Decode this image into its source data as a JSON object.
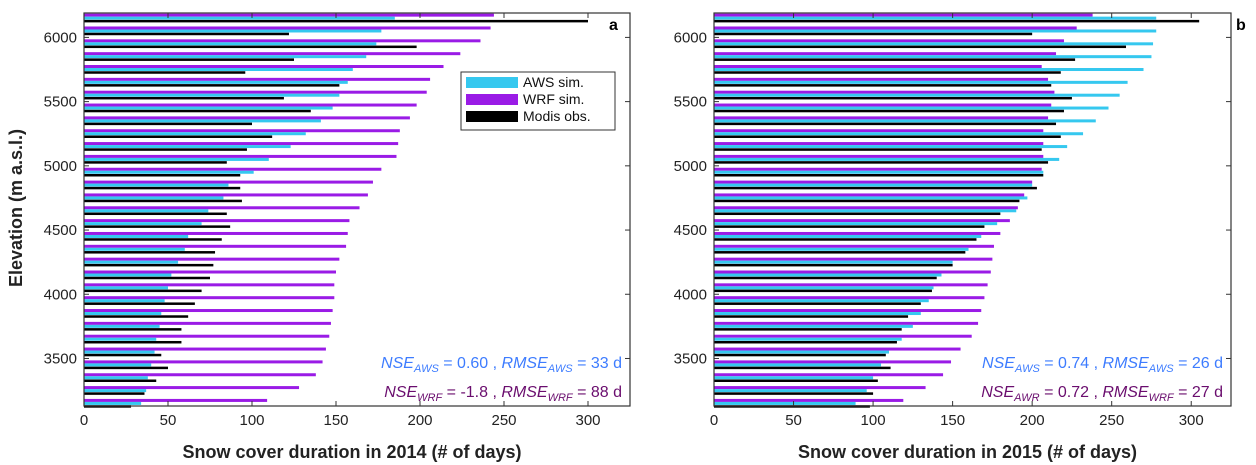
{
  "figure": {
    "ylabel": "Elevation (m a.s.l.)",
    "colors": {
      "aws": "#35c8ef",
      "wrf": "#9a1be6",
      "modis": "#000000",
      "stat_aws": "#3d7cff",
      "stat_wrf": "#6a0d6e"
    }
  },
  "legend": {
    "aws": "AWS sim.",
    "wrf": "WRF sim.",
    "modis": "Modis obs.",
    "placement": "top-right of panel a"
  },
  "chart_data": [
    {
      "type": "bar",
      "orientation": "horizontal",
      "panel": "a",
      "xlabel": "Snow cover duration in 2014 (# of days)",
      "ylabel": "Elevation (m a.s.l.)",
      "xlim": [
        0,
        325
      ],
      "ylim": [
        3130,
        6190
      ],
      "xticks": [
        "0",
        "50",
        "100",
        "150",
        "200",
        "250",
        "300"
      ],
      "yticks": [
        "3500",
        "4000",
        "4500",
        "5000",
        "5500",
        "6000"
      ],
      "y": [
        3150,
        3250,
        3350,
        3450,
        3550,
        3650,
        3750,
        3850,
        3950,
        4050,
        4150,
        4250,
        4350,
        4450,
        4550,
        4650,
        4750,
        4850,
        4950,
        5050,
        5150,
        5250,
        5350,
        5450,
        5550,
        5650,
        5750,
        5850,
        5950,
        6050,
        6150
      ],
      "series": [
        {
          "name": "AWS sim.",
          "values": [
            34,
            37,
            38,
            40,
            42,
            43,
            45,
            46,
            48,
            50,
            52,
            56,
            60,
            62,
            70,
            74,
            83,
            86,
            101,
            110,
            123,
            132,
            141,
            148,
            152,
            157,
            160,
            168,
            174,
            177,
            185
          ]
        },
        {
          "name": "WRF sim.",
          "values": [
            109,
            128,
            138,
            142,
            144,
            146,
            147,
            148,
            149,
            149,
            150,
            152,
            156,
            157,
            158,
            164,
            169,
            172,
            177,
            186,
            187,
            188,
            194,
            198,
            204,
            206,
            214,
            224,
            236,
            242,
            244
          ]
        },
        {
          "name": "Modis obs.",
          "values": [
            28,
            36,
            43,
            50,
            46,
            58,
            58,
            62,
            66,
            70,
            75,
            77,
            78,
            82,
            87,
            85,
            94,
            93,
            93,
            85,
            97,
            112,
            100,
            135,
            119,
            152,
            96,
            125,
            198,
            122,
            300
          ]
        }
      ],
      "annotations": [
        {
          "text": [
            "NSE",
            "AWS",
            " = 0.60 , ",
            "RMSE",
            "AWS",
            " = 33 d"
          ],
          "color": "aws"
        },
        {
          "text": [
            "NSE",
            "WRF",
            " = -1.8 , ",
            "RMSE",
            "WRF",
            " = 88 d"
          ],
          "color": "wrf"
        }
      ]
    },
    {
      "type": "bar",
      "orientation": "horizontal",
      "panel": "b",
      "xlabel": "Snow cover duration in 2015 (# of days)",
      "ylabel": "",
      "xlim": [
        0,
        325
      ],
      "ylim": [
        3130,
        6190
      ],
      "xticks": [
        "0",
        "50",
        "100",
        "150",
        "200",
        "250",
        "300"
      ],
      "yticks": [
        "3500",
        "4000",
        "4500",
        "5000",
        "5500",
        "6000"
      ],
      "y": [
        3150,
        3250,
        3350,
        3450,
        3550,
        3650,
        3750,
        3850,
        3950,
        4050,
        4150,
        4250,
        4350,
        4450,
        4550,
        4650,
        4750,
        4850,
        4950,
        5050,
        5150,
        5250,
        5350,
        5450,
        5550,
        5650,
        5750,
        5850,
        5950,
        6050,
        6150
      ],
      "series": [
        {
          "name": "AWS sim.",
          "values": [
            89,
            96,
            100,
            105,
            110,
            118,
            125,
            130,
            135,
            138,
            143,
            150,
            160,
            168,
            178,
            190,
            197,
            200,
            207,
            217,
            222,
            232,
            240,
            248,
            255,
            260,
            270,
            275,
            276,
            278,
            278
          ]
        },
        {
          "name": "WRF sim.",
          "values": [
            119,
            133,
            144,
            149,
            155,
            162,
            166,
            168,
            170,
            172,
            174,
            175,
            176,
            180,
            186,
            191,
            195,
            200,
            206,
            207,
            207,
            207,
            210,
            212,
            214,
            210,
            206,
            215,
            220,
            228,
            238
          ]
        },
        {
          "name": "Modis obs.",
          "values": [
            98,
            100,
            103,
            111,
            108,
            115,
            118,
            122,
            130,
            137,
            140,
            150,
            158,
            165,
            170,
            180,
            192,
            203,
            207,
            210,
            206,
            218,
            215,
            220,
            225,
            212,
            218,
            227,
            259,
            200,
            305
          ]
        }
      ],
      "annotations": [
        {
          "text": [
            "NSE",
            "AWS",
            " = 0.74 , ",
            "RMSE",
            "AWS",
            " = 26 d"
          ],
          "color": "aws"
        },
        {
          "text": [
            "NSE",
            "AWR",
            " = 0.72 , ",
            "RMSE",
            "WRF",
            " = 27 d"
          ],
          "color": "wrf"
        }
      ]
    }
  ]
}
